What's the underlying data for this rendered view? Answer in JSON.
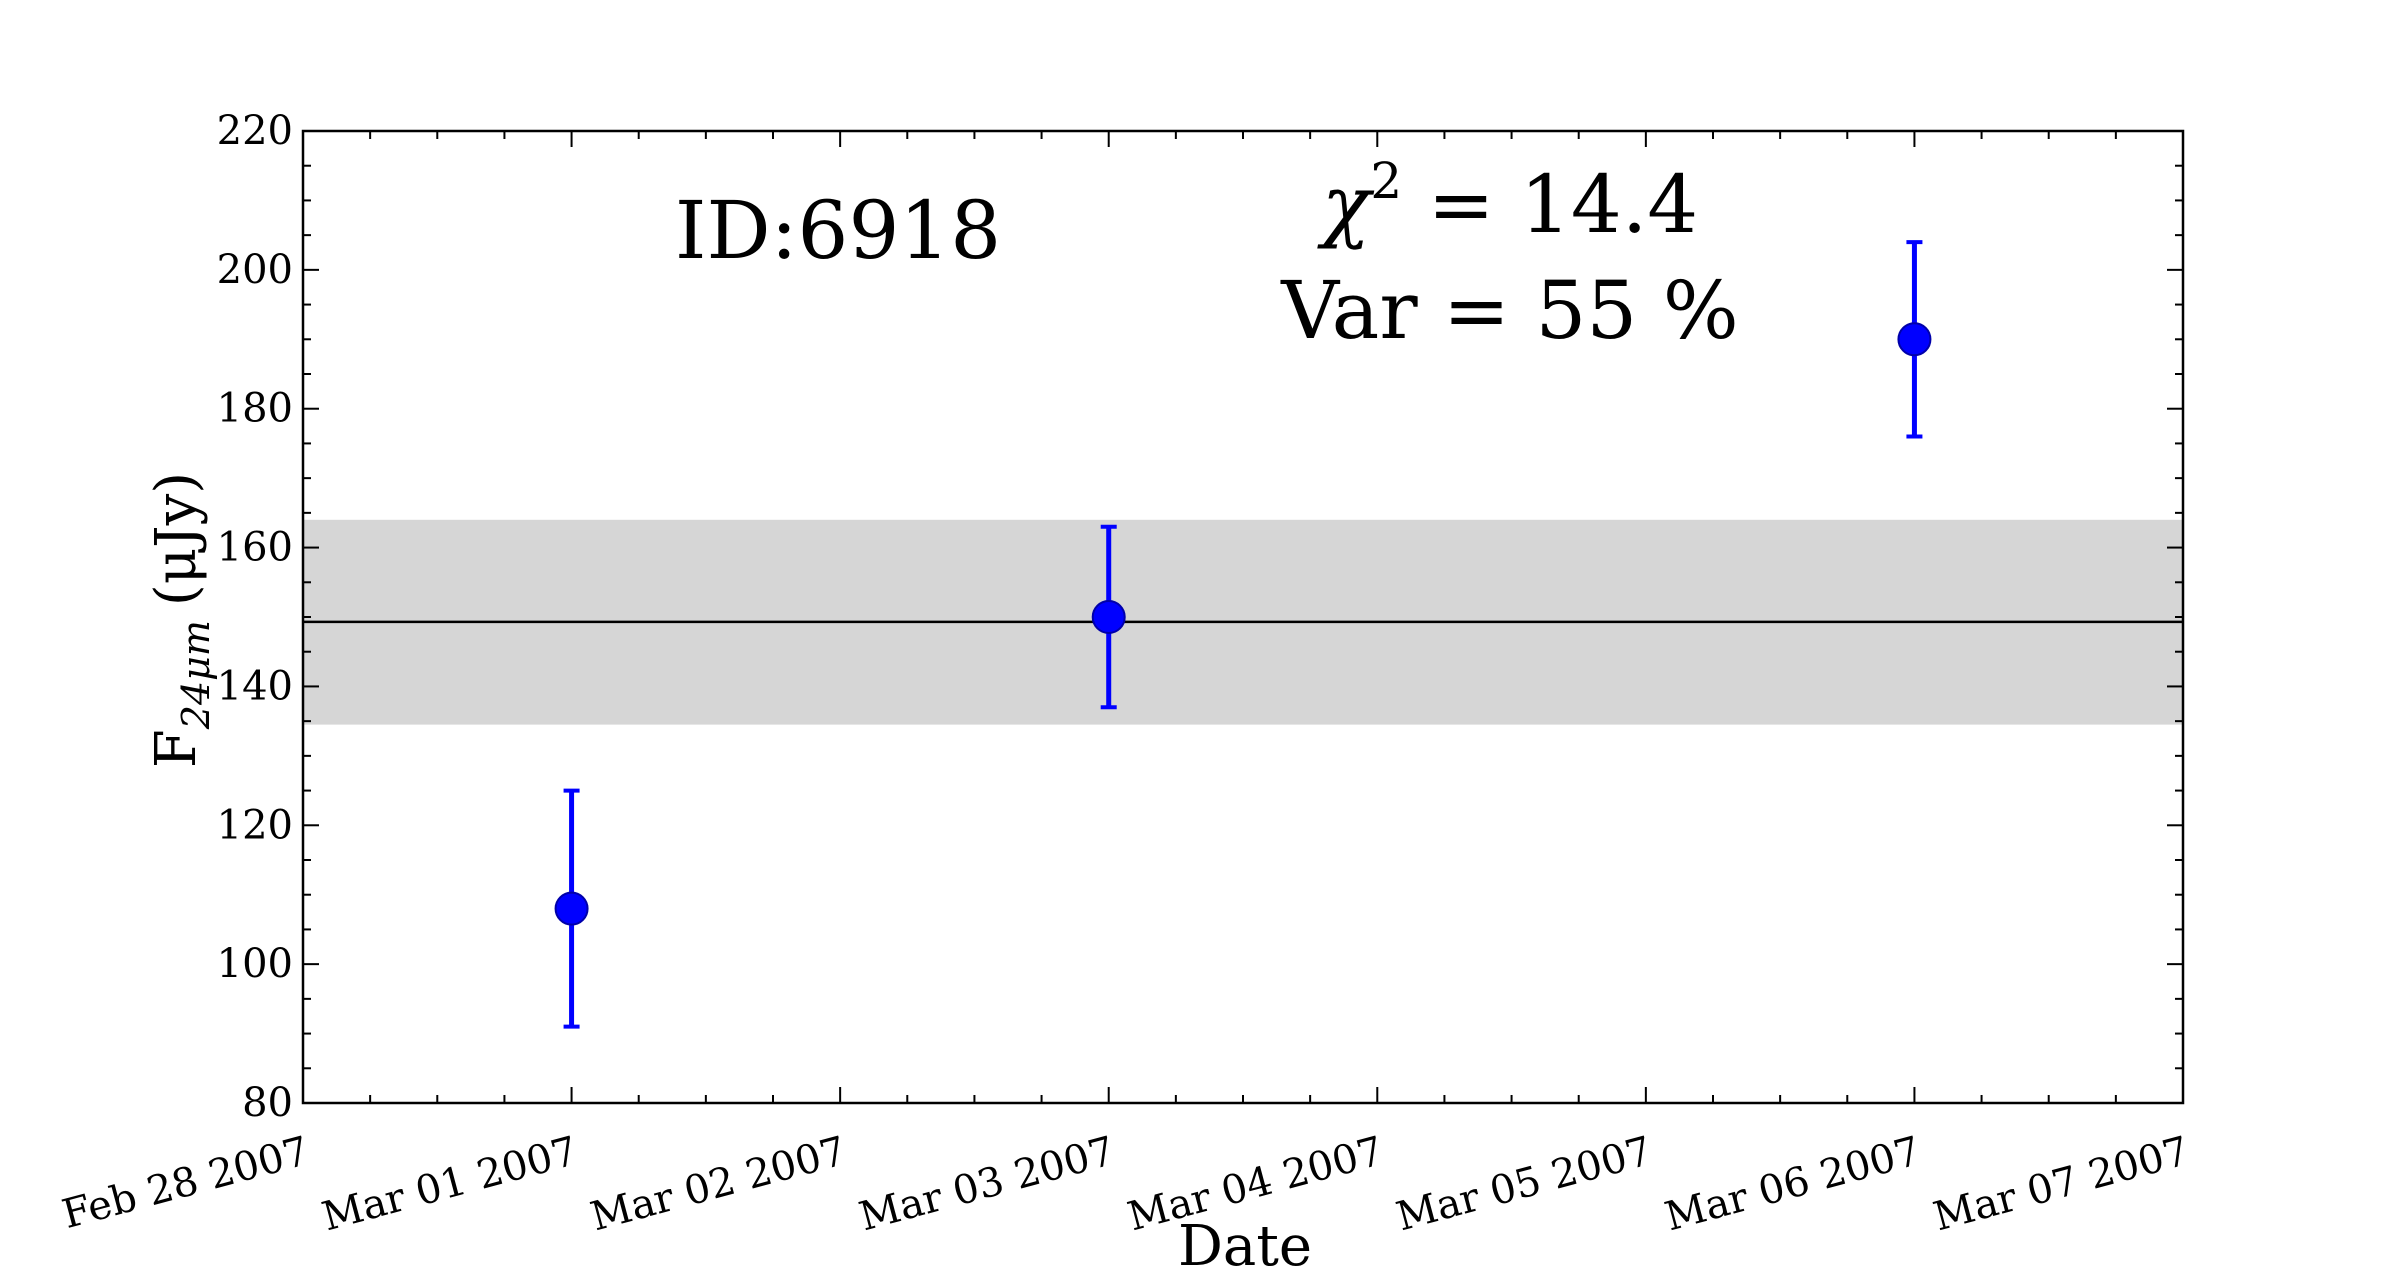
{
  "chart_data": {
    "type": "scatter",
    "title": "",
    "xlabel": "Date",
    "ylabel": {
      "main": "F",
      "subscript": "24μm",
      "unit": "(μJy)"
    },
    "ylim": [
      80,
      220
    ],
    "yticks": [
      80,
      100,
      120,
      140,
      160,
      180,
      200,
      220
    ],
    "xlim": [
      "2007-02-28",
      "2007-03-07"
    ],
    "xticks": [
      {
        "date": "2007-02-28",
        "label": "Feb 28 2007"
      },
      {
        "date": "2007-03-01",
        "label": "Mar 01 2007"
      },
      {
        "date": "2007-03-02",
        "label": "Mar 02 2007"
      },
      {
        "date": "2007-03-03",
        "label": "Mar 03 2007"
      },
      {
        "date": "2007-03-04",
        "label": "Mar 04 2007"
      },
      {
        "date": "2007-03-05",
        "label": "Mar 05 2007"
      },
      {
        "date": "2007-03-06",
        "label": "Mar 06 2007"
      },
      {
        "date": "2007-03-07",
        "label": "Mar 07 2007"
      }
    ],
    "grid": false,
    "series": [
      {
        "color": "#0000ff",
        "points": [
          {
            "x": "2007-03-01",
            "y": 108,
            "yerr_low": 91,
            "yerr_high": 125
          },
          {
            "x": "2007-03-03",
            "y": 150,
            "yerr_low": 137,
            "yerr_high": 163
          },
          {
            "x": "2007-03-06",
            "y": 190,
            "yerr_low": 176,
            "yerr_high": 204
          }
        ]
      }
    ],
    "mean_line": {
      "y": 149.3,
      "color": "#000000"
    },
    "band": {
      "y_low": 134.5,
      "y_high": 164,
      "color": "#d6d6d6"
    },
    "annotations": {
      "id": "ID:6918",
      "chi2_symbol": "χ",
      "chi2_power": "2",
      "chi2_value": " = 14.4",
      "var": "Var = 55 %"
    }
  }
}
